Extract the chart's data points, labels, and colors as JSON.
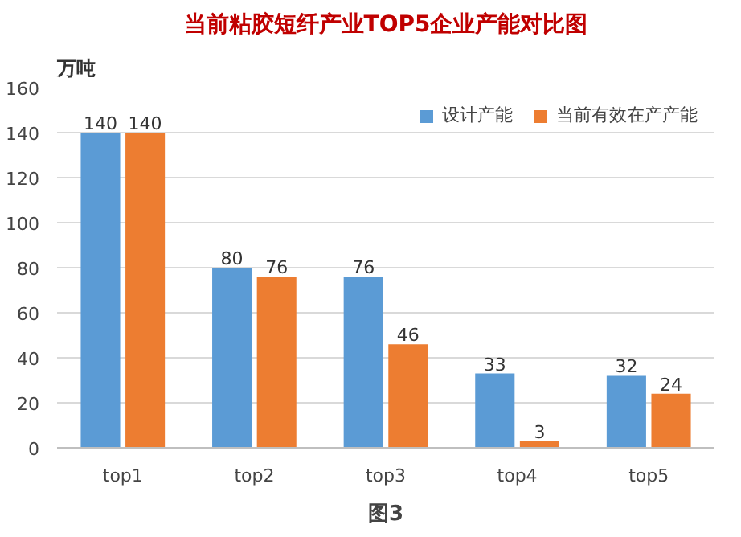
{
  "chart_data": {
    "type": "bar",
    "title": "当前粘胶短纤产业TOP5企业产能对比图",
    "ylabel": "万吨",
    "categories": [
      "top1",
      "top2",
      "top3",
      "top4",
      "top5"
    ],
    "series": [
      {
        "name": "设计产能",
        "color": "#5b9bd5",
        "values": [
          140,
          80,
          76,
          33,
          32
        ]
      },
      {
        "name": "当前有效在产产能",
        "color": "#ed7d31",
        "values": [
          140,
          76,
          46,
          3,
          24
        ]
      }
    ],
    "ylim": [
      0,
      160
    ],
    "yticks": [
      0,
      20,
      40,
      60,
      80,
      100,
      120,
      140,
      160
    ],
    "grid": "y",
    "legend": "top right",
    "data_labels": true,
    "annotations": [
      "图3"
    ]
  }
}
